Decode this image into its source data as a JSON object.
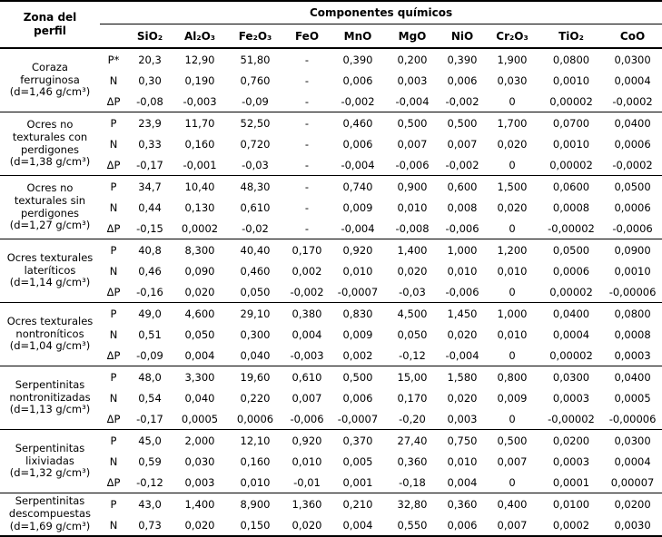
{
  "table": {
    "zone_header": "Zona del perfil",
    "group_header": "Componentes químicos",
    "columns": [
      "SiO₂",
      "Al₂O₃",
      "Fe₂O₃",
      "FeO",
      "MnO",
      "MgO",
      "NiO",
      "Cr₂O₃",
      "TiO₂",
      "CoO"
    ],
    "groups": [
      {
        "zone": "Coraza ferruginosa",
        "density": "(d=1,46 g/cm³)",
        "rows": [
          {
            "label": "P*",
            "values": [
              "20,3",
              "12,90",
              "51,80",
              "-",
              "0,390",
              "0,200",
              "0,390",
              "1,900",
              "0,0800",
              "0,0300"
            ]
          },
          {
            "label": "N",
            "values": [
              "0,30",
              "0,190",
              "0,760",
              "-",
              "0,006",
              "0,003",
              "0,006",
              "0,030",
              "0,0010",
              "0,0004"
            ]
          },
          {
            "label": "ΔP",
            "values": [
              "-0,08",
              "-0,003",
              "-0,09",
              "-",
              "-0,002",
              "-0,004",
              "-0,002",
              "0",
              "0,00002",
              "-0,0002"
            ]
          }
        ]
      },
      {
        "zone": "Ocres no texturales con perdigones",
        "density": "(d=1,38 g/cm³)",
        "rows": [
          {
            "label": "P",
            "values": [
              "23,9",
              "11,70",
              "52,50",
              "-",
              "0,460",
              "0,500",
              "0,500",
              "1,700",
              "0,0700",
              "0,0400"
            ]
          },
          {
            "label": "N",
            "values": [
              "0,33",
              "0,160",
              "0,720",
              "-",
              "0,006",
              "0,007",
              "0,007",
              "0,020",
              "0,0010",
              "0,0006"
            ]
          },
          {
            "label": "ΔP",
            "values": [
              "-0,17",
              "-0,001",
              "-0,03",
              "-",
              "-0,004",
              "-0,006",
              "-0,002",
              "0",
              "0,00002",
              "-0,0002"
            ]
          }
        ]
      },
      {
        "zone": "Ocres no texturales sin perdigones",
        "density": "(d=1,27 g/cm³)",
        "rows": [
          {
            "label": "P",
            "values": [
              "34,7",
              "10,40",
              "48,30",
              "-",
              "0,740",
              "0,900",
              "0,600",
              "1,500",
              "0,0600",
              "0,0500"
            ]
          },
          {
            "label": "N",
            "values": [
              "0,44",
              "0,130",
              "0,610",
              "-",
              "0,009",
              "0,010",
              "0,008",
              "0,020",
              "0,0008",
              "0,0006"
            ]
          },
          {
            "label": "ΔP",
            "values": [
              "-0,15",
              "0,0002",
              "-0,02",
              "-",
              "-0,004",
              "-0,008",
              "-0,006",
              "0",
              "-0,00002",
              "-0,0006"
            ]
          }
        ]
      },
      {
        "zone": "Ocres texturales lateríticos",
        "density": "(d=1,14 g/cm³)",
        "rows": [
          {
            "label": "P",
            "values": [
              "40,8",
              "8,300",
              "40,40",
              "0,170",
              "0,920",
              "1,400",
              "1,000",
              "1,200",
              "0,0500",
              "0,0900"
            ]
          },
          {
            "label": "N",
            "values": [
              "0,46",
              "0,090",
              "0,460",
              "0,002",
              "0,010",
              "0,020",
              "0,010",
              "0,010",
              "0,0006",
              "0,0010"
            ]
          },
          {
            "label": "ΔP",
            "values": [
              "-0,16",
              "0,020",
              "0,050",
              "-0,002",
              "-0,0007",
              "-0,03",
              "-0,006",
              "0",
              "0,00002",
              "-0,00006"
            ]
          }
        ]
      },
      {
        "zone": "Ocres texturales nontroníticos",
        "density": "(d=1,04 g/cm³)",
        "rows": [
          {
            "label": "P",
            "values": [
              "49,0",
              "4,600",
              "29,10",
              "0,380",
              "0,830",
              "4,500",
              "1,450",
              "1,000",
              "0,0400",
              "0,0800"
            ]
          },
          {
            "label": "N",
            "values": [
              "0,51",
              "0,050",
              "0,300",
              "0,004",
              "0,009",
              "0,050",
              "0,020",
              "0,010",
              "0,0004",
              "0,0008"
            ]
          },
          {
            "label": "ΔP",
            "values": [
              "-0,09",
              "0,004",
              "0,040",
              "-0,003",
              "0,002",
              "-0,12",
              "-0,004",
              "0",
              "0,00002",
              "0,0003"
            ]
          }
        ]
      },
      {
        "zone": "Serpentinitas nontronitizadas",
        "density": "(d=1,13 g/cm³)",
        "rows": [
          {
            "label": "P",
            "values": [
              "48,0",
              "3,300",
              "19,60",
              "0,610",
              "0,500",
              "15,00",
              "1,580",
              "0,800",
              "0,0300",
              "0,0400"
            ]
          },
          {
            "label": "N",
            "values": [
              "0,54",
              "0,040",
              "0,220",
              "0,007",
              "0,006",
              "0,170",
              "0,020",
              "0,009",
              "0,0003",
              "0,0005"
            ]
          },
          {
            "label": "ΔP",
            "values": [
              "-0,17",
              "0,0005",
              "0,0006",
              "-0,006",
              "-0,0007",
              "-0,20",
              "0,003",
              "0",
              "-0,00002",
              "-0,00006"
            ]
          }
        ]
      },
      {
        "zone": "Serpentinitas lixiviadas",
        "density": "(d=1,32 g/cm³)",
        "rows": [
          {
            "label": "P",
            "values": [
              "45,0",
              "2,000",
              "12,10",
              "0,920",
              "0,370",
              "27,40",
              "0,750",
              "0,500",
              "0,0200",
              "0,0300"
            ]
          },
          {
            "label": "N",
            "values": [
              "0,59",
              "0,030",
              "0,160",
              "0,010",
              "0,005",
              "0,360",
              "0,010",
              "0,007",
              "0,0003",
              "0,0004"
            ]
          },
          {
            "label": "ΔP",
            "values": [
              "-0,12",
              "0,003",
              "0,010",
              "-0,01",
              "0,001",
              "-0,18",
              "0,004",
              "0",
              "0,0001",
              "0,00007"
            ]
          }
        ]
      },
      {
        "zone": "Serpentinitas descompuestas",
        "density": "(d=1,69 g/cm³)",
        "rows": [
          {
            "label": "P",
            "values": [
              "43,0",
              "1,400",
              "8,900",
              "1,360",
              "0,210",
              "32,80",
              "0,360",
              "0,400",
              "0,0100",
              "0,0200"
            ]
          },
          {
            "label": "N",
            "values": [
              "0,73",
              "0,020",
              "0,150",
              "0,020",
              "0,004",
              "0,550",
              "0,006",
              "0,007",
              "0,0002",
              "0,0030"
            ]
          }
        ]
      }
    ]
  }
}
